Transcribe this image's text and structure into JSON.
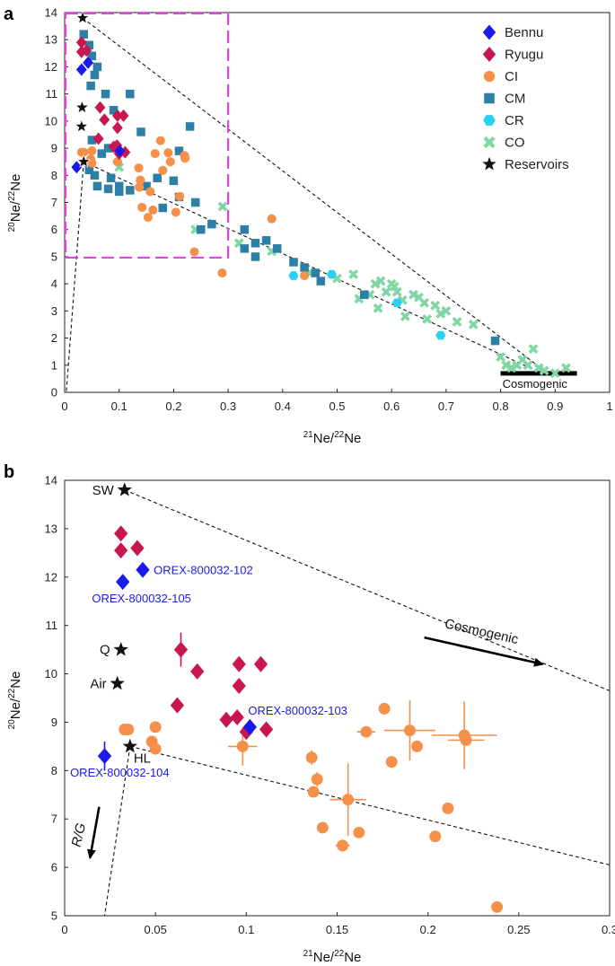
{
  "chart_data": [
    {
      "panel": "a",
      "type": "scatter",
      "xlabel_base": "Ne/Ne",
      "xlabel_sup1": "21",
      "xlabel_sup2": "22",
      "ylabel_sup1": "20",
      "ylabel_sup2": "22",
      "xlim": [
        0,
        1
      ],
      "ylim": [
        0,
        14
      ],
      "xticks": [
        "0",
        "0.1",
        "0.2",
        "0.3",
        "0.4",
        "0.5",
        "0.6",
        "0.7",
        "0.8",
        "0.9",
        "1"
      ],
      "yticks": [
        "0",
        "1",
        "2",
        "3",
        "4",
        "5",
        "6",
        "7",
        "8",
        "9",
        "10",
        "11",
        "12",
        "13",
        "14"
      ],
      "cosmogenic_label": "Cosmogenic",
      "cosmogenic_bar": {
        "x": [
          0.8,
          0.94
        ],
        "y": 0.7
      },
      "inset_box": {
        "x": [
          0,
          0.3
        ],
        "y": [
          5,
          14
        ]
      },
      "legend": [
        {
          "name": "Bennu",
          "marker": "diamond",
          "color": "#1a1aeb"
        },
        {
          "name": "Ryugu",
          "marker": "diamond",
          "color": "#c8174e"
        },
        {
          "name": "CI",
          "marker": "circle",
          "color": "#f4904a"
        },
        {
          "name": "CM",
          "marker": "square",
          "color": "#2d7fa6"
        },
        {
          "name": "CR",
          "marker": "hexagon",
          "color": "#2ad1f2"
        },
        {
          "name": "CO",
          "marker": "cross",
          "color": "#7fd7a4"
        },
        {
          "name": "Reservoirs",
          "marker": "star",
          "color": "#111111"
        }
      ],
      "series": [
        {
          "name": "Reservoirs",
          "points": [
            [
              0.033,
              13.8
            ],
            [
              0.032,
              10.5
            ],
            [
              0.031,
              9.8
            ],
            [
              0.035,
              8.5
            ]
          ]
        },
        {
          "name": "Bennu",
          "points": [
            [
              0.043,
              12.15
            ],
            [
              0.031,
              11.9
            ],
            [
              0.101,
              8.9
            ],
            [
              0.022,
              8.3
            ]
          ]
        },
        {
          "name": "Ryugu",
          "points": [
            [
              0.031,
              12.9
            ],
            [
              0.031,
              12.55
            ],
            [
              0.04,
              12.6
            ],
            [
              0.065,
              10.5
            ],
            [
              0.073,
              10.05
            ],
            [
              0.097,
              10.2
            ],
            [
              0.108,
              10.2
            ],
            [
              0.097,
              9.75
            ],
            [
              0.062,
              9.35
            ],
            [
              0.09,
              9.05
            ],
            [
              0.096,
              9.1
            ],
            [
              0.111,
              8.85
            ],
            [
              0.1,
              8.8
            ]
          ]
        },
        {
          "name": "CI",
          "points": [
            [
              0.031,
              8.85
            ],
            [
              0.035,
              8.85
            ],
            [
              0.05,
              8.9
            ],
            [
              0.048,
              8.6
            ],
            [
              0.05,
              8.45
            ],
            [
              0.097,
              8.5
            ],
            [
              0.166,
              8.8
            ],
            [
              0.176,
              9.28
            ],
            [
              0.19,
              8.83
            ],
            [
              0.194,
              8.5
            ],
            [
              0.22,
              8.73
            ],
            [
              0.221,
              8.63
            ],
            [
              0.18,
              8.18
            ],
            [
              0.136,
              8.27
            ],
            [
              0.137,
              7.56
            ],
            [
              0.139,
              7.82
            ],
            [
              0.142,
              6.82
            ],
            [
              0.157,
              7.4
            ],
            [
              0.153,
              6.45
            ],
            [
              0.162,
              6.72
            ],
            [
              0.204,
              6.64
            ],
            [
              0.211,
              7.22
            ],
            [
              0.238,
              5.18
            ],
            [
              0.289,
              4.4
            ],
            [
              0.38,
              6.4
            ],
            [
              0.44,
              4.3
            ]
          ]
        },
        {
          "name": "CM",
          "points": [
            [
              0.035,
              13.2
            ],
            [
              0.045,
              12.8
            ],
            [
              0.05,
              12.4
            ],
            [
              0.06,
              12.0
            ],
            [
              0.055,
              11.7
            ],
            [
              0.048,
              11.3
            ],
            [
              0.075,
              11.0
            ],
            [
              0.12,
              11.0
            ],
            [
              0.09,
              10.4
            ],
            [
              0.14,
              9.6
            ],
            [
              0.05,
              9.3
            ],
            [
              0.08,
              9.0
            ],
            [
              0.068,
              8.8
            ],
            [
              0.045,
              8.2
            ],
            [
              0.055,
              8.0
            ],
            [
              0.085,
              7.9
            ],
            [
              0.1,
              7.6
            ],
            [
              0.06,
              7.6
            ],
            [
              0.08,
              7.5
            ],
            [
              0.1,
              7.4
            ],
            [
              0.12,
              7.45
            ],
            [
              0.15,
              7.6
            ],
            [
              0.17,
              7.9
            ],
            [
              0.2,
              7.8
            ],
            [
              0.23,
              9.8
            ],
            [
              0.21,
              8.9
            ],
            [
              0.24,
              7.0
            ],
            [
              0.21,
              7.2
            ],
            [
              0.18,
              6.8
            ],
            [
              0.25,
              6.0
            ],
            [
              0.27,
              6.2
            ],
            [
              0.33,
              6.0
            ],
            [
              0.35,
              5.5
            ],
            [
              0.33,
              5.3
            ],
            [
              0.37,
              5.6
            ],
            [
              0.39,
              5.3
            ],
            [
              0.35,
              5.0
            ],
            [
              0.42,
              4.8
            ],
            [
              0.44,
              4.6
            ],
            [
              0.46,
              4.4
            ],
            [
              0.47,
              4.1
            ],
            [
              0.55,
              3.6
            ],
            [
              0.79,
              1.9
            ]
          ]
        },
        {
          "name": "CR",
          "points": [
            [
              0.42,
              4.3
            ],
            [
              0.49,
              4.35
            ],
            [
              0.61,
              3.3
            ],
            [
              0.69,
              2.1
            ]
          ]
        },
        {
          "name": "CO",
          "points": [
            [
              0.1,
              8.3
            ],
            [
              0.24,
              6.0
            ],
            [
              0.29,
              6.85
            ],
            [
              0.32,
              5.5
            ],
            [
              0.38,
              5.2
            ],
            [
              0.45,
              4.4
            ],
            [
              0.5,
              4.2
            ],
            [
              0.53,
              4.35
            ],
            [
              0.54,
              3.45
            ],
            [
              0.56,
              3.6
            ],
            [
              0.57,
              4.0
            ],
            [
              0.575,
              3.1
            ],
            [
              0.58,
              4.1
            ],
            [
              0.59,
              3.7
            ],
            [
              0.6,
              4.0
            ],
            [
              0.605,
              3.9
            ],
            [
              0.61,
              3.7
            ],
            [
              0.62,
              3.4
            ],
            [
              0.625,
              2.8
            ],
            [
              0.64,
              3.6
            ],
            [
              0.65,
              3.5
            ],
            [
              0.66,
              3.3
            ],
            [
              0.665,
              2.7
            ],
            [
              0.68,
              3.2
            ],
            [
              0.69,
              2.9
            ],
            [
              0.7,
              3.0
            ],
            [
              0.72,
              2.6
            ],
            [
              0.75,
              2.5
            ],
            [
              0.8,
              1.3
            ],
            [
              0.81,
              1.0
            ],
            [
              0.82,
              0.9
            ],
            [
              0.83,
              1.0
            ],
            [
              0.84,
              1.2
            ],
            [
              0.85,
              1.0
            ],
            [
              0.86,
              1.6
            ],
            [
              0.87,
              0.9
            ],
            [
              0.88,
              0.8
            ],
            [
              0.9,
              0.7
            ],
            [
              0.92,
              0.9
            ]
          ]
        }
      ],
      "mixing_lines": [
        [
          [
            0.033,
            13.8
          ],
          [
            0.88,
            0.8
          ]
        ],
        [
          [
            0.035,
            8.5
          ],
          [
            0.87,
            0.75
          ]
        ],
        [
          [
            0.035,
            8.5
          ],
          [
            0.003,
            0.0
          ]
        ]
      ]
    },
    {
      "panel": "b",
      "type": "scatter",
      "xlim": [
        0,
        0.3
      ],
      "ylim": [
        5,
        14
      ],
      "xticks": [
        "0",
        "0.05",
        "0.1",
        "0.15",
        "0.2",
        "0.25",
        "0.3"
      ],
      "yticks": [
        "5",
        "6",
        "7",
        "8",
        "9",
        "10",
        "11",
        "12",
        "13",
        "14"
      ],
      "reservoir_labels": {
        "SW": "SW",
        "Q": "Q",
        "Air": "Air",
        "HL": "HL"
      },
      "sample_labels": {
        "s102": "OREX-800032-102",
        "s105": "OREX-800032-105",
        "s103": "OREX-800032-103",
        "s104": "OREX-800032-104"
      },
      "arrows": {
        "cosmogenic": "Cosmogenic",
        "rg": "R/G"
      },
      "series": [
        {
          "name": "Reservoirs",
          "points": [
            [
              0.033,
              13.8
            ],
            [
              0.031,
              10.5
            ],
            [
              0.029,
              9.8
            ],
            [
              0.036,
              8.5
            ]
          ]
        },
        {
          "name": "Bennu",
          "points": [
            [
              0.043,
              12.15
            ],
            [
              0.032,
              11.9
            ],
            [
              0.102,
              8.9
            ],
            [
              0.022,
              8.3
            ]
          ]
        },
        {
          "name": "Ryugu",
          "points": [
            [
              0.031,
              12.9
            ],
            [
              0.031,
              12.55
            ],
            [
              0.04,
              12.6
            ],
            [
              0.064,
              10.5
            ],
            [
              0.073,
              10.05
            ],
            [
              0.096,
              10.2
            ],
            [
              0.108,
              10.2
            ],
            [
              0.096,
              9.75
            ],
            [
              0.062,
              9.35
            ],
            [
              0.089,
              9.05
            ],
            [
              0.095,
              9.1
            ],
            [
              0.111,
              8.85
            ],
            [
              0.1,
              8.8
            ]
          ]
        },
        {
          "name": "CI",
          "points": [
            [
              0.033,
              8.85
            ],
            [
              0.035,
              8.85
            ],
            [
              0.05,
              8.9
            ],
            [
              0.048,
              8.6
            ],
            [
              0.05,
              8.45
            ],
            [
              0.098,
              8.5
            ],
            [
              0.166,
              8.8
            ],
            [
              0.176,
              9.28
            ],
            [
              0.19,
              8.83
            ],
            [
              0.194,
              8.5
            ],
            [
              0.22,
              8.73
            ],
            [
              0.221,
              8.63
            ],
            [
              0.18,
              8.18
            ],
            [
              0.136,
              8.27
            ],
            [
              0.137,
              7.56
            ],
            [
              0.139,
              7.82
            ],
            [
              0.142,
              6.82
            ],
            [
              0.156,
              7.4
            ],
            [
              0.153,
              6.45
            ],
            [
              0.162,
              6.72
            ],
            [
              0.204,
              6.64
            ],
            [
              0.211,
              7.22
            ],
            [
              0.238,
              5.18
            ]
          ]
        }
      ],
      "mixing_lines": [
        [
          [
            0.033,
            13.8
          ],
          [
            0.3,
            9.65
          ]
        ],
        [
          [
            0.036,
            8.5
          ],
          [
            0.3,
            6.05
          ]
        ],
        [
          [
            0.036,
            8.5
          ],
          [
            0.022,
            5.0
          ]
        ]
      ]
    }
  ]
}
